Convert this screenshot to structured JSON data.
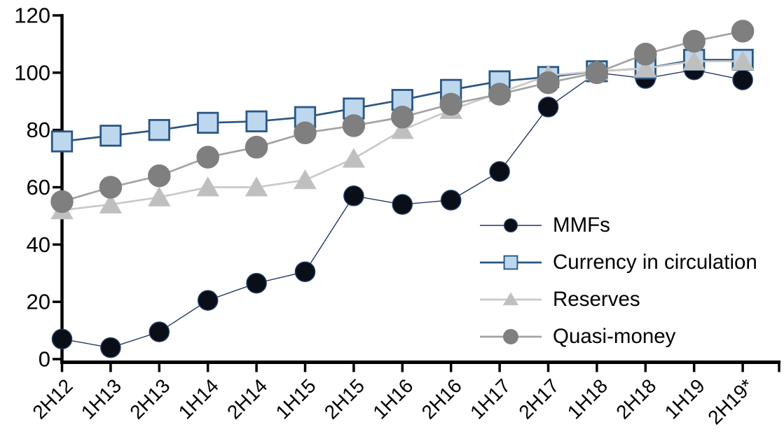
{
  "chart_data": {
    "type": "line",
    "title": "",
    "xlabel": "",
    "ylabel": "",
    "x_categories": [
      "2H12",
      "1H13",
      "2H13",
      "1H14",
      "2H14",
      "1H15",
      "2H15",
      "1H16",
      "2H16",
      "1H17",
      "2H17",
      "1H18",
      "2H18",
      "1H19",
      "2H19*"
    ],
    "y_ticks": [
      0,
      20,
      40,
      60,
      80,
      100,
      120
    ],
    "ylim": [
      0,
      120
    ],
    "grid": false,
    "legend_position": "center-right",
    "axis_color": "#000000",
    "series": [
      {
        "name": "MMFs",
        "marker": "circle",
        "marker_size": 28,
        "marker_fill": "#0A0E17",
        "marker_edge": "#1F3864",
        "line_color": "#24365E",
        "line_width": 1.4,
        "values": [
          7,
          4,
          9.5,
          20.5,
          26.5,
          30.5,
          57,
          54,
          55.5,
          65.5,
          88,
          100,
          98,
          101,
          97.5
        ]
      },
      {
        "name": "Currency in circulation",
        "marker": "square",
        "marker_size": 28.5,
        "marker_fill": "#BDD7EE",
        "marker_edge": "#2A5783",
        "line_color": "#2A5783",
        "line_width": 2.7,
        "values": [
          76,
          78,
          80,
          82.5,
          83,
          84.5,
          87.5,
          90.5,
          94,
          97,
          98.5,
          100.5,
          101.5,
          104.5,
          104.5
        ]
      },
      {
        "name": "Reserves",
        "marker": "triangle",
        "marker_size": 29,
        "marker_fill": "#BFBFBF",
        "marker_edge": "#C6C6C6",
        "line_color": "#C9C9C9",
        "line_width": 2.7,
        "values": [
          52,
          54,
          56.5,
          60,
          60,
          62.5,
          70,
          80,
          87,
          93,
          99,
          100.5,
          101.5,
          104,
          104
        ]
      },
      {
        "name": "Quasi-money",
        "marker": "circle",
        "marker_size": 31,
        "marker_fill": "#7F7F7F",
        "marker_edge": "#7F7F7F",
        "line_color": "#A3A3A3",
        "line_width": 2.7,
        "values": [
          55,
          60,
          64,
          70.5,
          74,
          79,
          81.5,
          84.5,
          89,
          92.5,
          96.5,
          100,
          106.5,
          111,
          114.5
        ]
      }
    ]
  }
}
